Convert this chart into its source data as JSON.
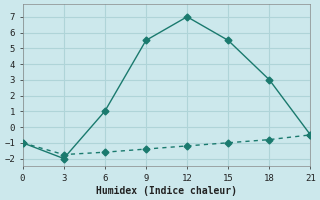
{
  "xlabel": "Humidex (Indice chaleur)",
  "line1_x": [
    0,
    3,
    6,
    9,
    12,
    15,
    18,
    21
  ],
  "line1_y": [
    -1,
    -2,
    1,
    5.5,
    7,
    5.5,
    3,
    -0.5
  ],
  "line2_x": [
    0,
    3,
    6,
    9,
    12,
    15,
    18,
    21
  ],
  "line2_y": [
    -1,
    -1.75,
    -1.6,
    -1.4,
    -1.2,
    -1.0,
    -0.8,
    -0.5
  ],
  "xlim": [
    0,
    21
  ],
  "ylim": [
    -2.5,
    7.8
  ],
  "xticks": [
    0,
    3,
    6,
    9,
    12,
    15,
    18,
    21
  ],
  "yticks": [
    -2,
    -1,
    0,
    1,
    2,
    3,
    4,
    5,
    6,
    7
  ],
  "line_color": "#1a7a6e",
  "bg_color": "#cce8ec",
  "grid_color": "#afd4d8",
  "marker": "D",
  "marker_size": 3.5,
  "linewidth": 1.0
}
